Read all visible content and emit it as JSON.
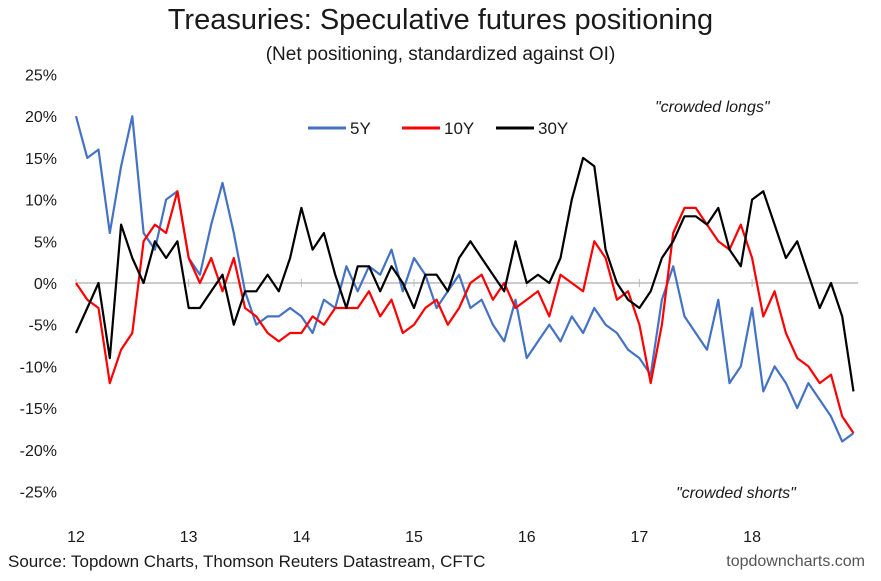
{
  "title": "Treasuries: Speculative futures positioning",
  "subtitle": "(Net positioning, standardized against OI)",
  "source": "Source: Topdown Charts, Thomson Reuters Datastream, CFTC",
  "brand": "topdowncharts.com",
  "annotations": {
    "top": "\"crowded  longs\"",
    "bottom": "\"crowded  shorts\""
  },
  "colors": {
    "5Y": "#4472C4",
    "10Y": "#FF0000",
    "30Y": "#000000",
    "zero_line": "#bbbbbb"
  },
  "chart_data": {
    "type": "line",
    "ylim": [
      -25,
      25
    ],
    "yticks": [
      -25,
      -20,
      -15,
      -10,
      -5,
      0,
      5,
      10,
      15,
      20,
      25
    ],
    "ytick_labels": [
      "-25%",
      "-20%",
      "-15%",
      "-10%",
      "-5%",
      "0%",
      "5%",
      "10%",
      "15%",
      "20%",
      "25%"
    ],
    "xlim": [
      12,
      18.94
    ],
    "xticks": [
      12,
      13,
      14,
      15,
      16,
      17,
      18
    ],
    "xtick_labels": [
      "12",
      "13",
      "14",
      "15",
      "16",
      "17",
      "18"
    ],
    "legend": "top-center",
    "grid": false,
    "x": [
      12.0,
      12.1,
      12.2,
      12.3,
      12.4,
      12.5,
      12.6,
      12.7,
      12.8,
      12.9,
      13.0,
      13.1,
      13.2,
      13.3,
      13.4,
      13.5,
      13.6,
      13.7,
      13.8,
      13.9,
      14.0,
      14.1,
      14.2,
      14.3,
      14.4,
      14.5,
      14.6,
      14.7,
      14.8,
      14.9,
      15.0,
      15.1,
      15.2,
      15.3,
      15.4,
      15.5,
      15.6,
      15.7,
      15.8,
      15.9,
      16.0,
      16.1,
      16.2,
      16.3,
      16.4,
      16.5,
      16.6,
      16.7,
      16.8,
      16.9,
      17.0,
      17.1,
      17.2,
      17.3,
      17.4,
      17.5,
      17.6,
      17.7,
      17.8,
      17.9,
      18.0,
      18.1,
      18.2,
      18.3,
      18.4,
      18.5,
      18.6,
      18.7,
      18.8,
      18.9
    ],
    "series": [
      {
        "name": "5Y",
        "values": [
          20,
          15,
          16,
          6,
          14,
          20,
          6,
          4,
          10,
          11,
          3,
          1,
          7,
          12,
          6,
          -1,
          -5,
          -4,
          -4,
          -3,
          -4,
          -6,
          -2,
          -3,
          2,
          -1,
          2,
          1,
          4,
          -1,
          3,
          1,
          -3,
          -1,
          1,
          -3,
          -2,
          -5,
          -7,
          -2,
          -9,
          -7,
          -5,
          -7,
          -4,
          -6,
          -3,
          -5,
          -6,
          -8,
          -9,
          -11,
          -2,
          2,
          -4,
          -6,
          -8,
          -2,
          -12,
          -10,
          -3,
          -13,
          -10,
          -12,
          -15,
          -12,
          -14,
          -16,
          -19,
          -18
        ]
      },
      {
        "name": "10Y",
        "values": [
          0,
          -2,
          -3,
          -12,
          -8,
          -6,
          5,
          7,
          6,
          11,
          3,
          0,
          3,
          -1,
          3,
          -3,
          -4,
          -6,
          -7,
          -6,
          -6,
          -4,
          -5,
          -3,
          -3,
          -3,
          -1,
          -4,
          -2,
          -6,
          -5,
          -3,
          -2,
          -5,
          -3,
          0,
          1,
          -2,
          0,
          -3,
          -2,
          -1,
          -4,
          1,
          0,
          -1,
          5,
          3,
          -2,
          -1,
          -5,
          -12,
          -5,
          6,
          9,
          9,
          7,
          5,
          4,
          7,
          3,
          -4,
          -1,
          -6,
          -9,
          -10,
          -12,
          -11,
          -16,
          -18
        ]
      },
      {
        "name": "30Y",
        "values": [
          -6,
          -3,
          0,
          -9,
          7,
          3,
          0,
          5,
          3,
          5,
          -3,
          -3,
          -1,
          1,
          -5,
          -1,
          -1,
          1,
          -1,
          3,
          9,
          4,
          6,
          1,
          -3,
          2,
          2,
          -1,
          2,
          0,
          -3,
          1,
          1,
          -1,
          3,
          5,
          3,
          1,
          -1,
          5,
          0,
          1,
          0,
          3,
          10,
          15,
          14,
          4,
          0,
          -2,
          -3,
          -1,
          3,
          5,
          8,
          8,
          7,
          9,
          4,
          2,
          10,
          11,
          7,
          3,
          5,
          1,
          -3,
          0,
          -4,
          -13
        ]
      }
    ]
  }
}
